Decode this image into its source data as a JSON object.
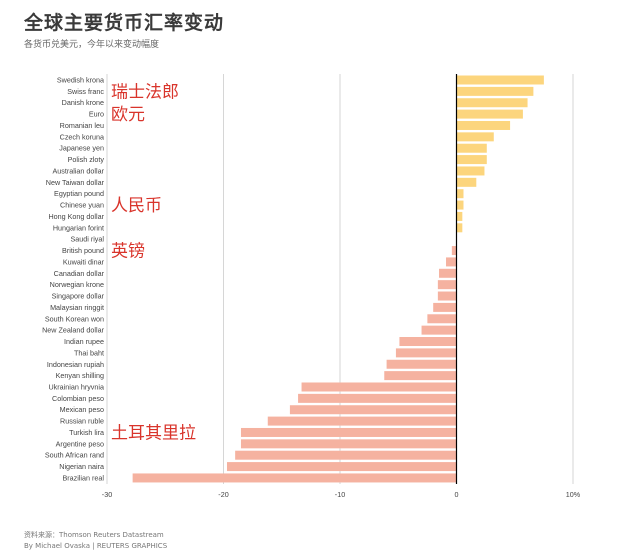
{
  "header": {
    "title": "全球主要货币汇率变动",
    "subtitle": "各货币兑美元，今年以来变动幅度"
  },
  "footer": {
    "source": "资料来源：Thomson Reuters Datastream",
    "credit": "By Michael Ovaska | REUTERS GRAPHICS"
  },
  "colors": {
    "positive": "#fcd57d",
    "negative": "#f5b2a0",
    "annotation": "#d9342b",
    "grid": "#d6d6d6",
    "zero_line": "#000000"
  },
  "chart_data": {
    "type": "bar",
    "orientation": "horizontal",
    "title": "全球主要货币汇率变动",
    "subtitle": "各货币兑美元，今年以来变动幅度",
    "xlim": [
      -30,
      10
    ],
    "xticks": [
      -30,
      -20,
      -10,
      0,
      10
    ],
    "xtick_labels": [
      "-30",
      "-20",
      "-10",
      "0",
      "10%"
    ],
    "grid": true,
    "categories": [
      "Swedish krona",
      "Swiss franc",
      "Danish krone",
      "Euro",
      "Romanian leu",
      "Czech koruna",
      "Japanese yen",
      "Polish zloty",
      "Australian dollar",
      "New Taiwan dollar",
      "Egyptian pound",
      "Chinese yuan",
      "Hong Kong dollar",
      "Hungarian forint",
      "Saudi riyal",
      "British pound",
      "Kuwaiti dinar",
      "Canadian dollar",
      "Norwegian krone",
      "Singapore dollar",
      "Malaysian ringgit",
      "South Korean won",
      "New Zealand dollar",
      "Indian rupee",
      "Thai baht",
      "Indonesian rupiah",
      "Kenyan shilling",
      "Ukrainian hryvnia",
      "Colombian peso",
      "Mexican peso",
      "Russian ruble",
      "Turkish lira",
      "Argentine peso",
      "South African rand",
      "Nigerian naira",
      "Brazilian real"
    ],
    "values": [
      7.5,
      6.6,
      6.1,
      5.7,
      4.6,
      3.2,
      2.6,
      2.6,
      2.4,
      1.7,
      0.6,
      0.6,
      0.5,
      0.5,
      0.0,
      -0.4,
      -0.9,
      -1.5,
      -1.6,
      -1.6,
      -2.0,
      -2.5,
      -3.0,
      -4.9,
      -5.2,
      -6.0,
      -6.2,
      -13.3,
      -13.6,
      -14.3,
      -16.2,
      -18.5,
      -18.5,
      -19.0,
      -19.7,
      -27.8
    ],
    "annotations": [
      {
        "text": "瑞士法郎",
        "category": "Swiss franc"
      },
      {
        "text": "欧元",
        "category": "Euro"
      },
      {
        "text": "人民币",
        "category": "Chinese yuan"
      },
      {
        "text": "英镑",
        "category": "British pound"
      },
      {
        "text": "土耳其里拉",
        "category": "Turkish lira"
      }
    ]
  }
}
